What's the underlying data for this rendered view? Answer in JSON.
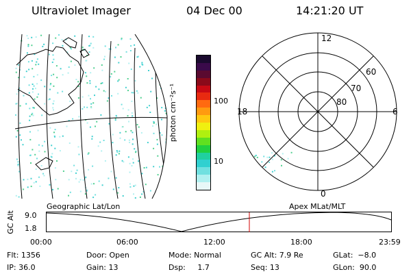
{
  "header": {
    "instrument": "Ultraviolet Imager",
    "date": "04 Dec 00",
    "time": "14:21:20 UT"
  },
  "colorbar": {
    "unit_label": "photon cm⁻²s⁻¹",
    "ticks": [
      "100",
      "10"
    ],
    "colors": [
      "#1a0a2e",
      "#3a0a4a",
      "#5a0a30",
      "#8a0a1a",
      "#c80a14",
      "#e82a10",
      "#ff6a10",
      "#ff9a10",
      "#ffc810",
      "#f0f010",
      "#b0f010",
      "#60e020",
      "#20d040",
      "#20d0a0",
      "#30d0d0",
      "#70e0e0",
      "#b0f0f0",
      "#e8f8f8"
    ]
  },
  "polar": {
    "mlt_labels": {
      "top": "12",
      "left": "18",
      "right": "6",
      "bottom": "0"
    },
    "lat_labels": [
      "60",
      "70",
      "80"
    ]
  },
  "timeline": {
    "left_title": "Geographic Lat/Lon",
    "right_title": "Apex MLat/MLT",
    "y_title": "GC Alt",
    "y_ticks": [
      "9.0",
      "1.8"
    ],
    "x_ticks": [
      "00:00",
      "06:00",
      "12:00",
      "18:00",
      "23:59"
    ]
  },
  "status": {
    "flt": "Flt: 1356",
    "ip": "IP: 36.0",
    "door": "Door: Open",
    "gain": "Gain: 13",
    "mode": "Mode: Normal",
    "dsp": "Dsp:     1.7",
    "gcalt": "GC Alt: 7.9 Re",
    "seq": "Seq: 13",
    "glat": "GLat:  −8.0",
    "glon": "GLon:  90.0"
  }
}
